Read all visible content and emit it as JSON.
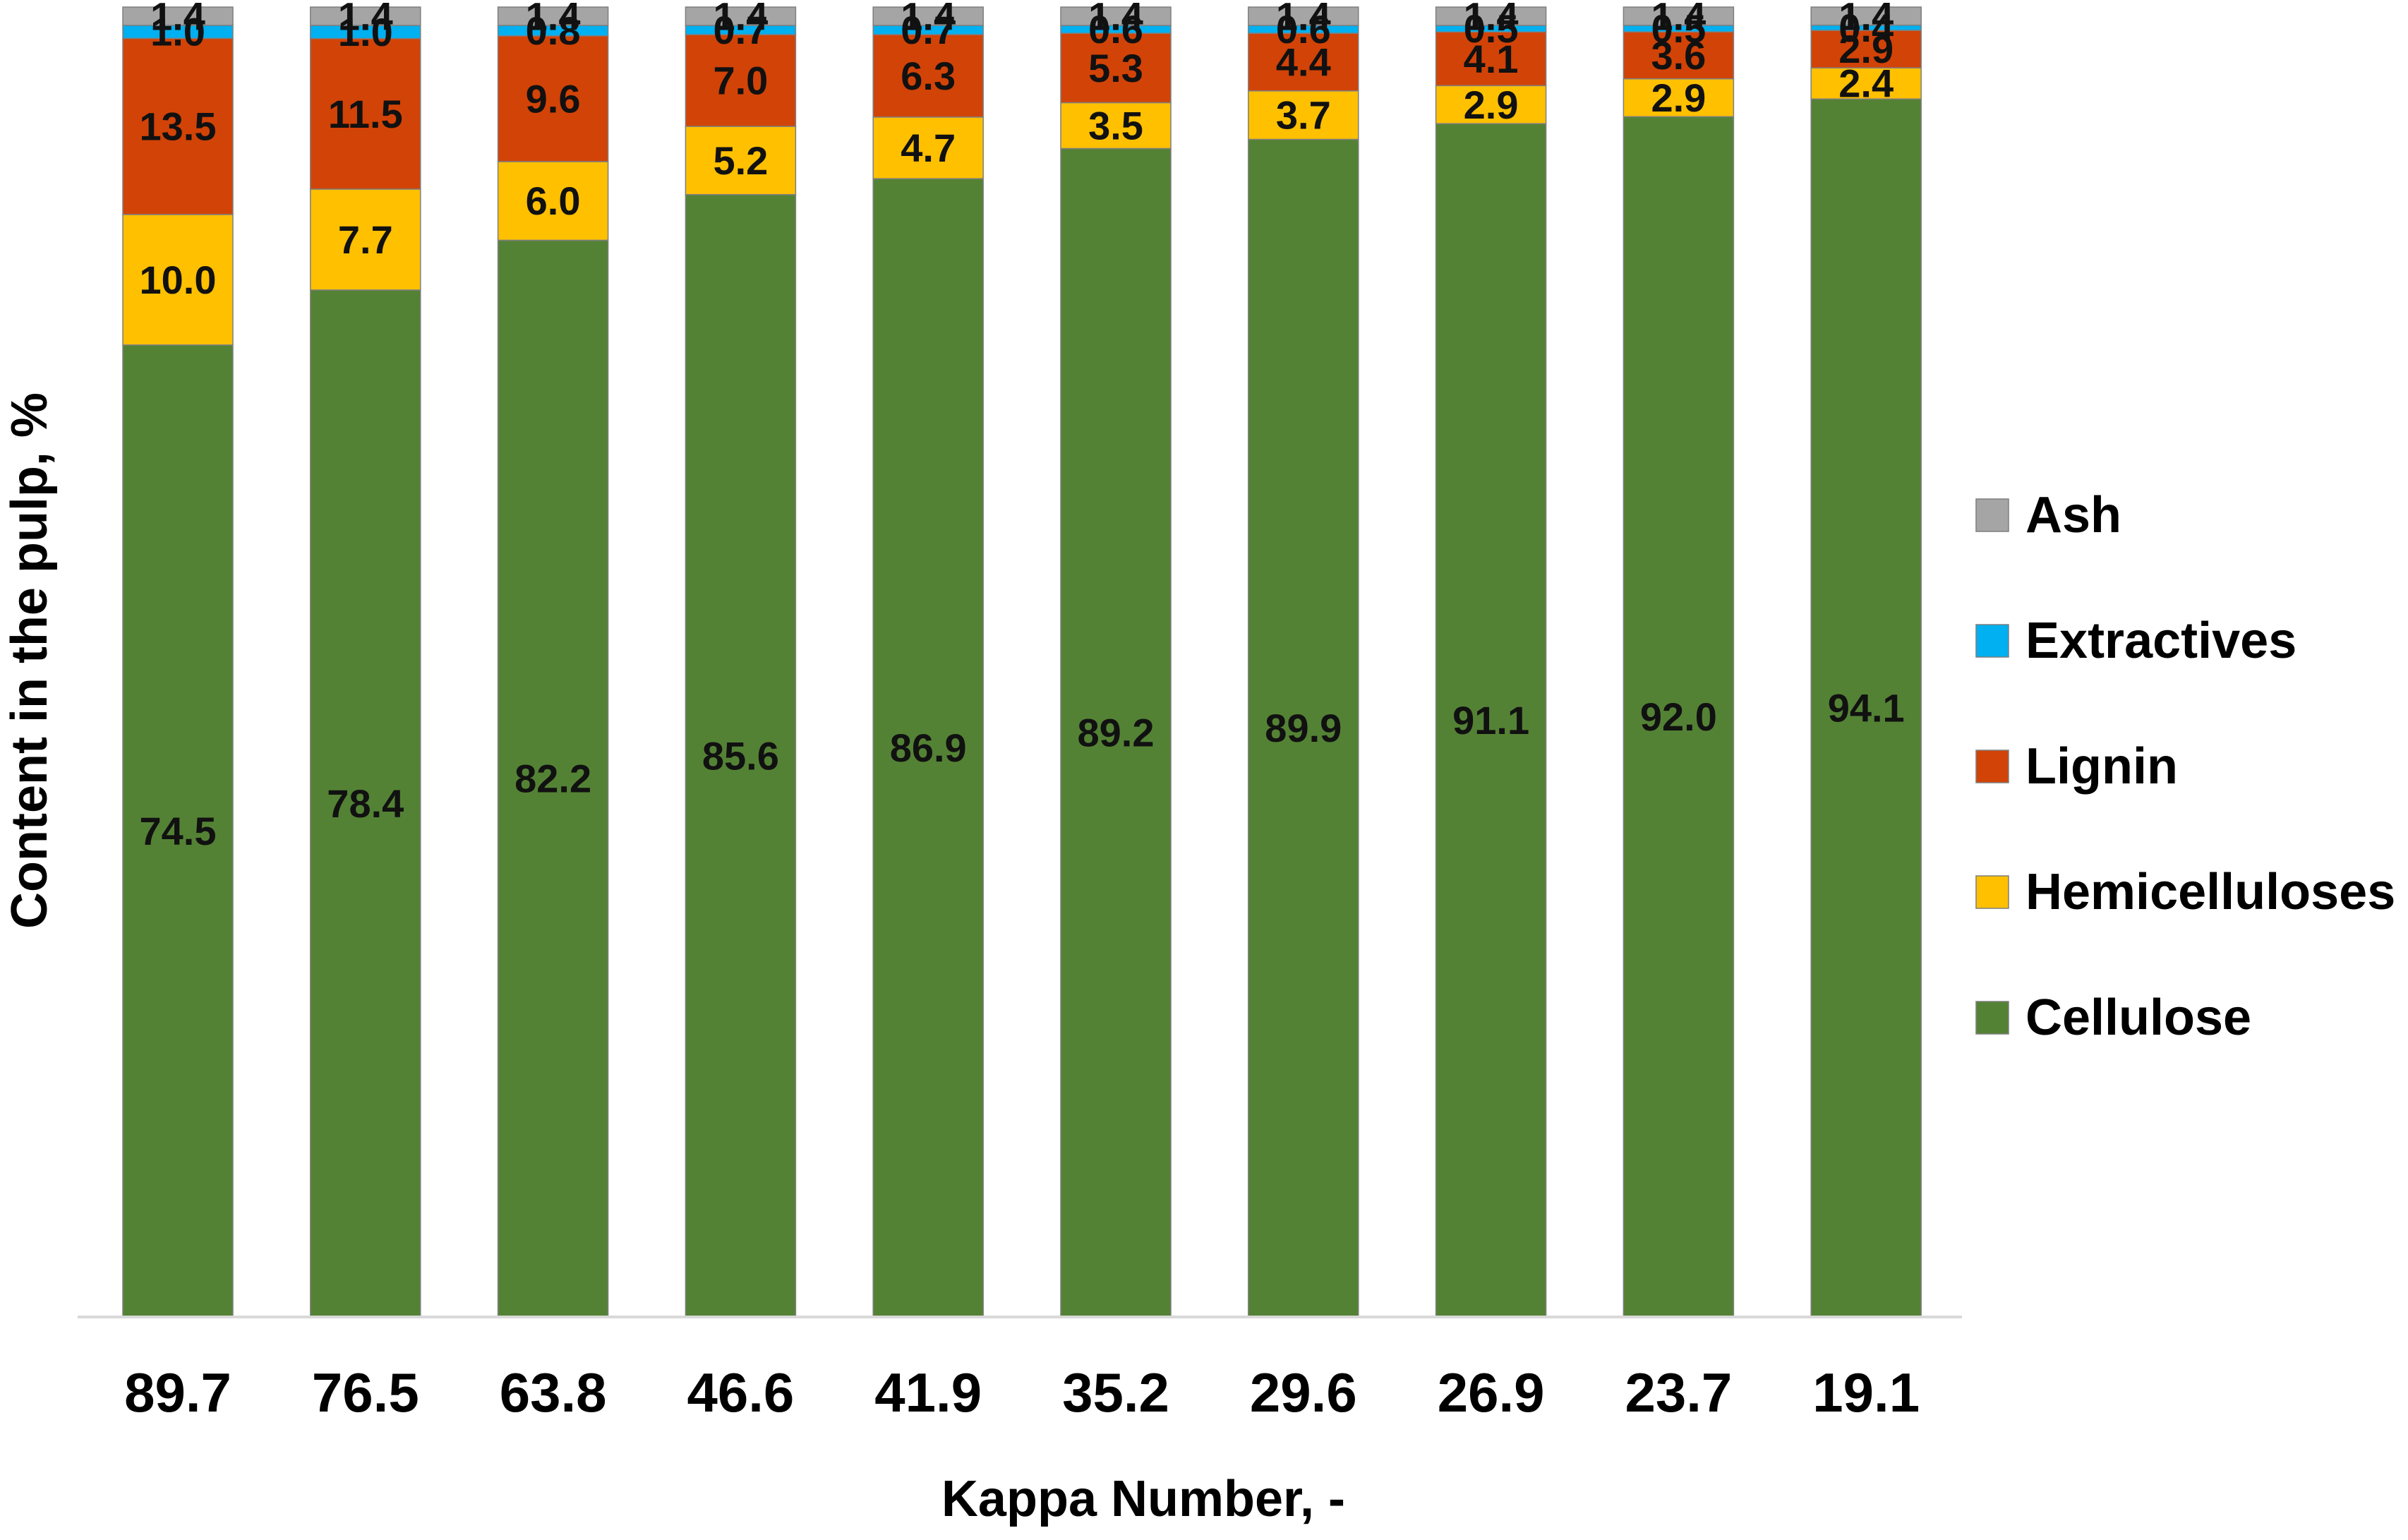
{
  "chart_data": {
    "type": "bar",
    "stacked": true,
    "title": "",
    "xlabel": "Kappa Number, -",
    "ylabel": "Content in the pulp, %",
    "categories": [
      "89.7",
      "76.5",
      "63.8",
      "46.6",
      "41.9",
      "35.2",
      "29.6",
      "26.9",
      "23.7",
      "19.1"
    ],
    "series": [
      {
        "name": "Cellulose",
        "color": "#548235",
        "values": [
          74.5,
          78.4,
          82.2,
          85.6,
          86.9,
          89.2,
          89.9,
          91.1,
          92.0,
          94.1
        ],
        "labels": [
          "74.5",
          "78.4",
          "82.2",
          "85.6",
          "86.9",
          "89.2",
          "89.9",
          "91.1",
          "92.0",
          "94.1"
        ]
      },
      {
        "name": "Hemicelluloses",
        "color": "#FFC000",
        "values": [
          10.0,
          7.7,
          6.0,
          5.2,
          4.7,
          3.5,
          3.7,
          2.9,
          2.9,
          2.4
        ],
        "labels": [
          "10.0",
          "7.7",
          "6.0",
          "5.2",
          "4.7",
          "3.5",
          "3.7",
          "2.9",
          "2.9",
          "2.4"
        ]
      },
      {
        "name": "Lignin",
        "color": "#D24307",
        "values": [
          13.5,
          11.5,
          9.6,
          7.0,
          6.3,
          5.3,
          4.4,
          4.1,
          3.6,
          2.9
        ],
        "labels": [
          "13.5",
          "11.5",
          "9.6",
          "7.0",
          "6.3",
          "5.3",
          "4.4",
          "4.1",
          "3.6",
          "2.9"
        ]
      },
      {
        "name": "Extractives",
        "color": "#00B0F0",
        "values": [
          1.0,
          1.0,
          0.8,
          0.7,
          0.7,
          0.6,
          0.6,
          0.5,
          0.5,
          0.4
        ],
        "labels": [
          "1.0",
          "1.0",
          "0.8",
          "0.7",
          "0.7",
          "0.6",
          "0.6",
          "0.5",
          "0.5",
          "0.4"
        ]
      },
      {
        "name": "Ash",
        "color": "#A5A5A5",
        "values": [
          1.4,
          1.4,
          1.4,
          1.4,
          1.4,
          1.4,
          1.4,
          1.4,
          1.4,
          1.4
        ],
        "labels": [
          "1.4",
          "1.4",
          "1.4",
          "1.4",
          "1.4",
          "1.4",
          "1.4",
          "1.4",
          "1.4",
          "1.4"
        ]
      }
    ],
    "legend_order": [
      "Ash",
      "Extractives",
      "Lignin",
      "Hemicelluloses",
      "Cellulose"
    ],
    "legend_position": "right",
    "grid": false,
    "y_axis_visible": false,
    "baseline_color": "#D9D9D9"
  }
}
